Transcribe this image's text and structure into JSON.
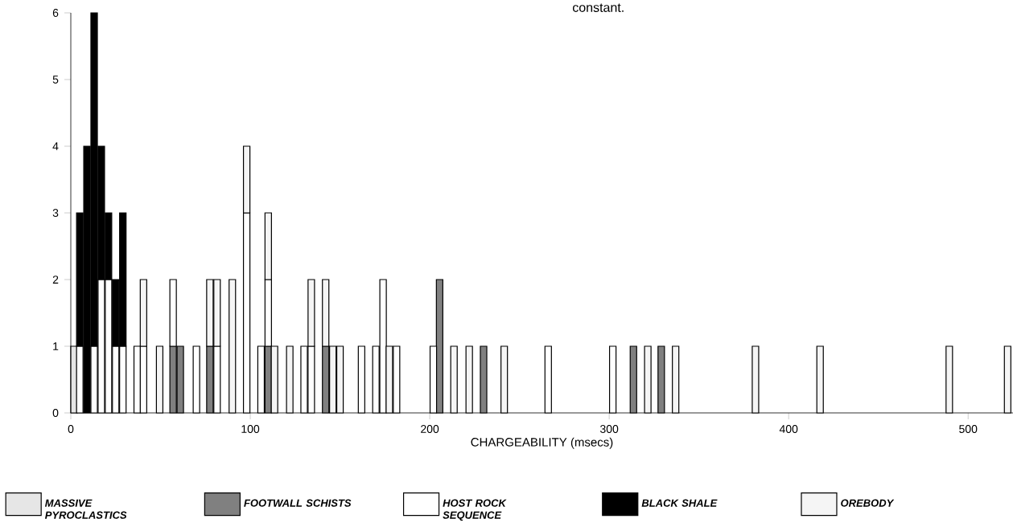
{
  "chart_data": {
    "type": "bar",
    "stacked": true,
    "xlabel": "CHARGEABILITY  (msecs)",
    "annotations": [
      "constant."
    ],
    "x": [
      1.8,
      5,
      9,
      13,
      17,
      21,
      25,
      29,
      37,
      40.5,
      49.5,
      57,
      61,
      70,
      77.5,
      81.5,
      90,
      98,
      106,
      110,
      113.5,
      122,
      130,
      134,
      142,
      146,
      150,
      162,
      170,
      174,
      177.5,
      181.5,
      202,
      205.5,
      213.5,
      222,
      230,
      241.5,
      266,
      302,
      313.5,
      321.5,
      329,
      337,
      381.5,
      417.5,
      489.5,
      522
    ],
    "xlim": [
      0,
      525
    ],
    "xticks": [
      0,
      100,
      200,
      300,
      400,
      500
    ],
    "ylim": [
      0,
      6
    ],
    "yticks": [
      0,
      1,
      2,
      3,
      4,
      5,
      6
    ],
    "grid": false,
    "legend": "bottom",
    "series": [
      {
        "name": "MASSIVE PYROCLASTICS",
        "color": "#e6e6e6",
        "values": [
          1,
          null,
          null,
          null,
          null,
          null,
          null,
          null,
          null,
          null,
          null,
          null,
          null,
          null,
          null,
          null,
          null,
          null,
          null,
          null,
          null,
          null,
          null,
          null,
          null,
          null,
          null,
          null,
          null,
          null,
          null,
          null,
          null,
          null,
          null,
          null,
          null,
          null,
          null,
          null,
          null,
          null,
          null,
          null,
          null,
          null,
          null,
          null
        ]
      },
      {
        "name": "FOOTWALL SCHISTS",
        "color": "#808080",
        "values": [
          null,
          null,
          null,
          null,
          null,
          null,
          null,
          null,
          null,
          null,
          null,
          1,
          1,
          null,
          1,
          null,
          null,
          null,
          null,
          1,
          null,
          null,
          null,
          null,
          1,
          null,
          null,
          null,
          null,
          null,
          null,
          null,
          null,
          2,
          null,
          null,
          1,
          null,
          null,
          null,
          1,
          null,
          1,
          null,
          null,
          null,
          null,
          null
        ]
      },
      {
        "name": "HOST ROCK SEQUENCE",
        "color": "#ffffff",
        "values": [
          null,
          1,
          null,
          1,
          2,
          2,
          1,
          1,
          1,
          1,
          null,
          1,
          null,
          1,
          null,
          1,
          null,
          3,
          1,
          1,
          null,
          null,
          1,
          1,
          null,
          null,
          null,
          1,
          1,
          2,
          null,
          1,
          1,
          null,
          null,
          null,
          null,
          null,
          1,
          1,
          null,
          null,
          null,
          null,
          null,
          null,
          null,
          null
        ]
      },
      {
        "name": "BLACK SHALE",
        "color": "#000000",
        "values": [
          null,
          2,
          4,
          5,
          2,
          1,
          1,
          2,
          null,
          null,
          null,
          null,
          null,
          null,
          null,
          null,
          null,
          null,
          null,
          null,
          null,
          null,
          null,
          null,
          null,
          null,
          null,
          null,
          null,
          null,
          null,
          null,
          null,
          null,
          null,
          null,
          null,
          null,
          null,
          null,
          null,
          null,
          null,
          null,
          null,
          null,
          null,
          null
        ]
      },
      {
        "name": "OREBODY",
        "color": "#f5f5f5",
        "values": [
          null,
          null,
          null,
          null,
          null,
          null,
          null,
          null,
          null,
          1,
          1,
          null,
          null,
          null,
          1,
          1,
          2,
          1,
          null,
          1,
          1,
          1,
          null,
          1,
          1,
          1,
          1,
          null,
          null,
          null,
          1,
          null,
          null,
          null,
          1,
          1,
          null,
          1,
          null,
          null,
          null,
          1,
          null,
          1,
          1,
          1,
          1,
          1
        ]
      }
    ]
  }
}
